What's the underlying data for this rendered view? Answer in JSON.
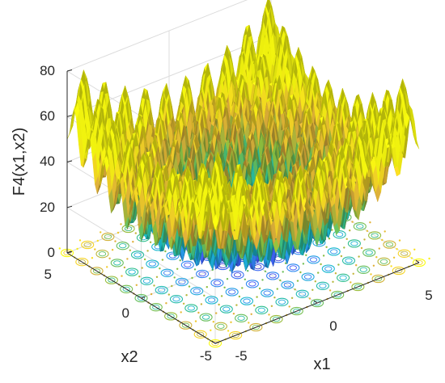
{
  "chart_data": {
    "type": "surface",
    "function": "F4(x1,x2) = x1^2 + x2^2 + 20 - 10*cos(2*pi*x1) - 10*cos(2*pi*x2)",
    "xlabel": "x1",
    "ylabel": "x2",
    "zlabel": "F4(x1,x2)",
    "xlim": [
      -5,
      5
    ],
    "ylim": [
      -5,
      5
    ],
    "zlim": [
      0,
      80
    ],
    "x_ticks": [
      "-5",
      "0",
      "5"
    ],
    "y_ticks": [
      "-5",
      "0",
      "5"
    ],
    "z_ticks": [
      "0",
      "20",
      "40",
      "60",
      "80"
    ],
    "grid": true,
    "contour_projection": true,
    "colormap": "parula",
    "colormap_colors": [
      "#3e26a8",
      "#4353f5",
      "#2b93f0",
      "#17b8ce",
      "#33c08a",
      "#8cbf3e",
      "#e0b03a",
      "#fbde23",
      "#f9fb0e"
    ],
    "surface_max": 80,
    "surface_min": 0
  }
}
